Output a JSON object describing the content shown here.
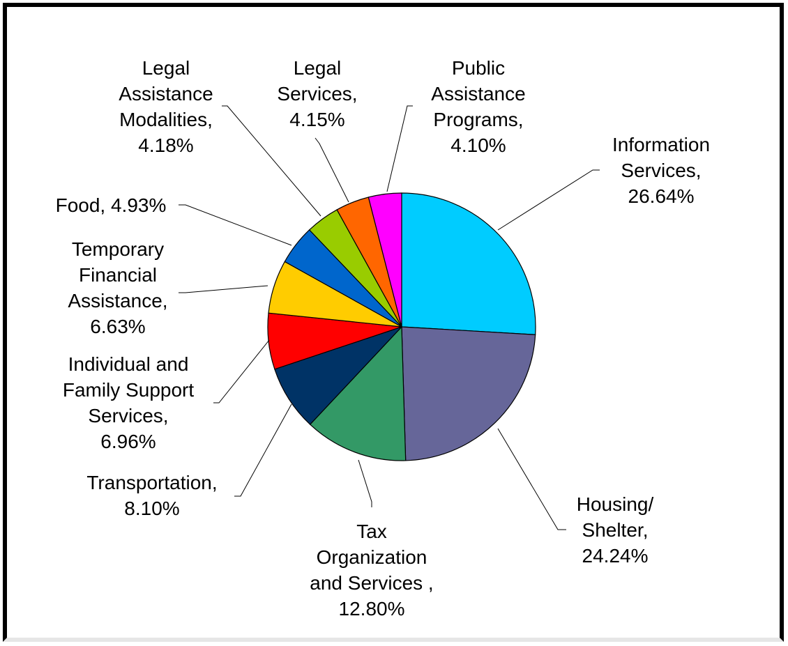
{
  "chart_data": {
    "type": "pie",
    "title": "",
    "start_angle_deg": 0,
    "direction": "clockwise",
    "legend": "none",
    "slices": [
      {
        "name": "Information Services",
        "value": 26.64,
        "label_lines": [
          "Information",
          "Services,",
          "26.64%"
        ],
        "color": "#00CCFF"
      },
      {
        "name": "Housing/ Shelter",
        "value": 24.24,
        "label_lines": [
          "Housing/",
          "Shelter,",
          "24.24%"
        ],
        "color": "#666699"
      },
      {
        "name": "Tax Organization and Services",
        "value": 12.8,
        "label_lines": [
          "Tax",
          "Organization",
          "and Services ,",
          "12.80%"
        ],
        "color": "#339966"
      },
      {
        "name": "Transportation",
        "value": 8.1,
        "label_lines": [
          "Transportation,",
          "8.10%"
        ],
        "color": "#003366"
      },
      {
        "name": "Individual and Family Support Services",
        "value": 6.96,
        "label_lines": [
          "Individual and",
          "Family Support",
          "Services,",
          "6.96%"
        ],
        "color": "#FF0000"
      },
      {
        "name": "Temporary Financial Assistance",
        "value": 6.63,
        "label_lines": [
          "Temporary",
          "Financial",
          "Assistance,",
          "6.63%"
        ],
        "color": "#FFCC00"
      },
      {
        "name": "Food",
        "value": 4.93,
        "label_lines": [
          "Food, 4.93%"
        ],
        "color": "#0066CC"
      },
      {
        "name": "Legal Assistance Modalities",
        "value": 4.18,
        "label_lines": [
          "Legal",
          "Assistance",
          "Modalities,",
          "4.18%"
        ],
        "color": "#99CC00"
      },
      {
        "name": "Legal Services",
        "value": 4.15,
        "label_lines": [
          "Legal",
          "Services,",
          "4.15%"
        ],
        "color": "#FF6600"
      },
      {
        "name": "Public Assistance Programs",
        "value": 4.1,
        "label_lines": [
          "Public",
          "Assistance",
          "Programs,",
          "4.10%"
        ],
        "color": "#FF00FF"
      }
    ]
  }
}
